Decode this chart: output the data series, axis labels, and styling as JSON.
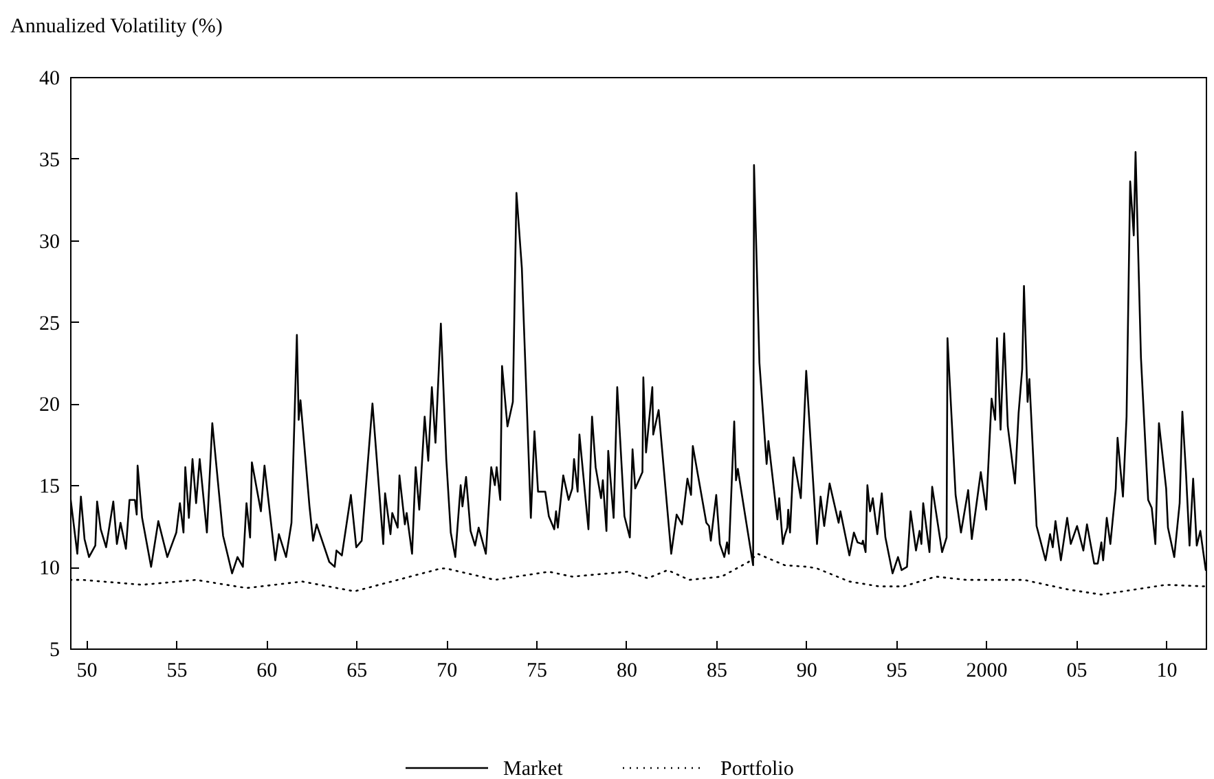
{
  "chart_data": {
    "type": "line",
    "ylabel": "Annualized Volatility (%)",
    "xlim": [
      1949.1,
      2012.2
    ],
    "ylim": [
      5,
      40
    ],
    "xticks": [
      {
        "value": 1950,
        "label": "50"
      },
      {
        "value": 1955,
        "label": "55"
      },
      {
        "value": 1960,
        "label": "60"
      },
      {
        "value": 1965,
        "label": "65"
      },
      {
        "value": 1970,
        "label": "70"
      },
      {
        "value": 1975,
        "label": "75"
      },
      {
        "value": 1980,
        "label": "80"
      },
      {
        "value": 1985,
        "label": "85"
      },
      {
        "value": 1990,
        "label": "90"
      },
      {
        "value": 1995,
        "label": "95"
      },
      {
        "value": 2000,
        "label": "2000"
      },
      {
        "value": 2005,
        "label": "05"
      },
      {
        "value": 2010,
        "label": "10"
      }
    ],
    "yticks": [
      5,
      10,
      15,
      20,
      25,
      30,
      35,
      40
    ],
    "grid": false,
    "legend": "bottom",
    "marker": "none",
    "series": [
      {
        "name": "Market",
        "color": "#000000",
        "line_style": "solid",
        "x": [
          1949.1,
          1949.5,
          1949.7,
          1949.9,
          1950.15,
          1950.5,
          1950.6,
          1950.8,
          1951.1,
          1951.5,
          1951.7,
          1951.9,
          1952.2,
          1952.4,
          1952.7,
          1952.8,
          1952.85,
          1953.1,
          1953.6,
          1954.0,
          1954.5,
          1955.0,
          1955.2,
          1955.4,
          1955.5,
          1955.7,
          1955.9,
          1956.1,
          1956.3,
          1956.7,
          1957.0,
          1957.6,
          1958.1,
          1958.4,
          1958.7,
          1958.9,
          1959.1,
          1959.2,
          1959.7,
          1959.9,
          1960.5,
          1960.7,
          1961.1,
          1961.4,
          1961.7,
          1961.8,
          1961.9,
          1962.4,
          1962.6,
          1962.8,
          1963.5,
          1963.8,
          1963.9,
          1964.2,
          1964.7,
          1965.0,
          1965.3,
          1965.9,
          1966.5,
          1966.6,
          1966.9,
          1967.0,
          1967.3,
          1967.4,
          1967.7,
          1967.8,
          1968.1,
          1968.3,
          1968.5,
          1968.8,
          1969.0,
          1969.2,
          1969.4,
          1969.7,
          1970.0,
          1970.25,
          1970.5,
          1970.8,
          1970.9,
          1971.1,
          1971.35,
          1971.6,
          1971.8,
          1972.2,
          1972.5,
          1972.7,
          1972.8,
          1973.0,
          1973.1,
          1973.4,
          1973.7,
          1973.9,
          1974.2,
          1974.7,
          1974.9,
          1975.1,
          1975.5,
          1975.7,
          1976.0,
          1976.1,
          1976.2,
          1976.5,
          1976.8,
          1977.0,
          1977.1,
          1977.3,
          1977.4,
          1977.9,
          1978.1,
          1978.3,
          1978.6,
          1978.7,
          1978.9,
          1979.0,
          1979.3,
          1979.5,
          1979.9,
          1980.2,
          1980.35,
          1980.5,
          1980.9,
          1980.95,
          1981.1,
          1981.45,
          1981.5,
          1981.8,
          1982.5,
          1982.8,
          1983.1,
          1983.4,
          1983.6,
          1983.7,
          1984.45,
          1984.6,
          1984.7,
          1985.0,
          1985.2,
          1985.45,
          1985.6,
          1985.7,
          1986.0,
          1986.1,
          1986.2,
          1986.6,
          1987.05,
          1987.1,
          1987.4,
          1987.8,
          1987.9,
          1988.4,
          1988.5,
          1988.7,
          1988.8,
          1988.95,
          1989.0,
          1989.1,
          1989.3,
          1989.7,
          1990.0,
          1990.6,
          1990.8,
          1991.0,
          1991.3,
          1991.8,
          1991.9,
          1992.4,
          1992.65,
          1992.85,
          1993.1,
          1993.15,
          1993.3,
          1993.4,
          1993.55,
          1993.7,
          1993.95,
          1994.2,
          1994.4,
          1994.8,
          1995.1,
          1995.3,
          1995.6,
          1995.8,
          1996.1,
          1996.3,
          1996.4,
          1996.5,
          1996.85,
          1997.0,
          1997.55,
          1997.8,
          1997.85,
          1998.3,
          1998.6,
          1999.0,
          1999.2,
          1999.7,
          2000.0,
          2000.3,
          2000.5,
          2000.6,
          2000.8,
          2001.0,
          2001.2,
          2001.6,
          2001.8,
          2002.0,
          2002.1,
          2002.3,
          2002.4,
          2002.8,
          2003.3,
          2003.55,
          2003.7,
          2003.85,
          2004.15,
          2004.5,
          2004.7,
          2005.05,
          2005.4,
          2005.6,
          2006.0,
          2006.2,
          2006.4,
          2006.5,
          2006.7,
          2006.9,
          2007.2,
          2007.3,
          2007.6,
          2007.8,
          2008.0,
          2008.2,
          2008.3,
          2008.6,
          2009.0,
          2009.2,
          2009.4,
          2009.6,
          2010.0,
          2010.1,
          2010.45,
          2010.75,
          2010.9,
          2011.1,
          2011.3,
          2011.5,
          2011.7,
          2011.9,
          2012.2
        ],
        "values": [
          14.4,
          10.8,
          14.3,
          11.7,
          10.6,
          11.3,
          14.0,
          12.3,
          11.2,
          14.0,
          11.4,
          12.7,
          11.1,
          14.1,
          14.1,
          13.2,
          16.2,
          13.0,
          10.0,
          12.8,
          10.6,
          12.1,
          13.9,
          12.1,
          16.1,
          13.0,
          16.6,
          13.9,
          16.6,
          12.1,
          18.8,
          11.9,
          9.6,
          10.6,
          10.0,
          13.9,
          11.8,
          16.4,
          13.4,
          16.2,
          10.4,
          12.0,
          10.6,
          12.7,
          24.2,
          19.0,
          20.2,
          13.7,
          11.6,
          12.6,
          10.3,
          10.0,
          11.0,
          10.7,
          14.4,
          11.2,
          11.6,
          20.0,
          11.4,
          14.5,
          12.0,
          13.3,
          12.4,
          15.6,
          12.6,
          13.3,
          10.8,
          16.1,
          13.5,
          19.2,
          16.5,
          21.0,
          17.6,
          24.9,
          16.6,
          12.1,
          10.6,
          15.0,
          13.7,
          15.5,
          12.2,
          11.3,
          12.4,
          10.8,
          16.1,
          15.0,
          16.1,
          14.1,
          22.3,
          18.6,
          20.1,
          32.9,
          28.3,
          13.0,
          18.3,
          14.6,
          14.6,
          13.1,
          12.3,
          13.4,
          12.4,
          15.6,
          14.1,
          14.8,
          16.6,
          14.6,
          18.1,
          12.3,
          19.2,
          16.1,
          14.2,
          15.3,
          12.2,
          17.1,
          13.0,
          21.0,
          13.1,
          11.8,
          17.2,
          14.8,
          15.8,
          21.6,
          17.0,
          21.0,
          18.1,
          19.6,
          10.8,
          13.2,
          12.6,
          15.4,
          14.4,
          17.4,
          12.7,
          12.5,
          11.6,
          14.4,
          11.4,
          10.6,
          11.5,
          10.8,
          18.9,
          15.3,
          16.0,
          13.2,
          10.1,
          34.6,
          22.5,
          16.3,
          17.7,
          12.9,
          14.2,
          11.4,
          11.9,
          12.4,
          13.5,
          12.1,
          16.7,
          14.2,
          22.0,
          11.4,
          14.3,
          12.5,
          15.1,
          12.7,
          13.4,
          10.7,
          12.1,
          11.5,
          11.4,
          11.6,
          10.9,
          15.0,
          13.4,
          14.2,
          12.0,
          14.5,
          11.8,
          9.6,
          10.6,
          9.8,
          10.0,
          13.4,
          11.0,
          12.2,
          11.4,
          13.9,
          10.9,
          14.9,
          10.9,
          11.8,
          24.0,
          14.4,
          12.1,
          14.7,
          11.7,
          15.8,
          13.5,
          20.3,
          19.0,
          24.0,
          18.4,
          24.3,
          18.6,
          15.1,
          19.4,
          22.1,
          27.2,
          20.1,
          21.5,
          12.5,
          10.4,
          12.0,
          11.2,
          12.8,
          10.4,
          13.0,
          11.4,
          12.5,
          11.0,
          12.6,
          10.2,
          10.2,
          11.5,
          10.4,
          13.0,
          11.4,
          14.8,
          17.9,
          14.3,
          19.2,
          33.6,
          30.3,
          35.4,
          22.8,
          14.1,
          13.6,
          11.4,
          18.8,
          14.8,
          12.4,
          10.6,
          13.9,
          19.5,
          15.8,
          11.3,
          15.4,
          11.3,
          12.2,
          9.8
        ]
      },
      {
        "name": "Portfolio",
        "color": "#000000",
        "line_style": "dotted",
        "x": [
          1949.1,
          1949.8,
          1953.1,
          1956.1,
          1958.9,
          1962.0,
          1964.9,
          1969.7,
          1970.0,
          1972.7,
          1975.7,
          1977.0,
          1980.05,
          1981.2,
          1982.3,
          1983.5,
          1985.3,
          1986.8,
          1987.3,
          1988.8,
          1990.1,
          1990.6,
          1992.4,
          1994.05,
          1995.4,
          1997.2,
          1998.9,
          2000.7,
          2002.1,
          2004.6,
          2006.4,
          2008.2,
          2010.0,
          2012.2
        ],
        "values": [
          9.2,
          9.2,
          8.9,
          9.2,
          8.7,
          9.1,
          8.5,
          9.9,
          9.9,
          9.2,
          9.7,
          9.4,
          9.7,
          9.3,
          9.8,
          9.2,
          9.4,
          10.3,
          10.8,
          10.1,
          10.0,
          9.9,
          9.1,
          8.8,
          8.8,
          9.4,
          9.2,
          9.2,
          9.2,
          8.6,
          8.3,
          8.6,
          8.9,
          8.8
        ]
      }
    ]
  }
}
